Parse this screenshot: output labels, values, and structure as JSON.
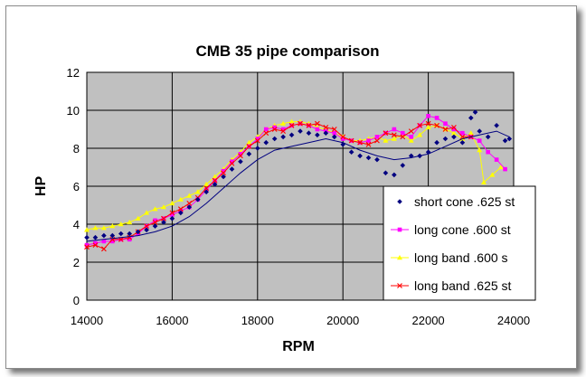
{
  "chart_data": {
    "type": "line",
    "title": "CMB 35 pipe comparison",
    "xlabel": "RPM",
    "ylabel": "HP",
    "xlim": [
      14000,
      24000
    ],
    "ylim": [
      0,
      12
    ],
    "x_ticks": [
      "14000",
      "16000",
      "18000",
      "20000",
      "22000",
      "24000"
    ],
    "y_ticks": [
      "0",
      "2",
      "4",
      "6",
      "8",
      "10",
      "12"
    ],
    "grid": true,
    "plot_background": "#c0c0c0",
    "legend_position": "lower-right",
    "series": [
      {
        "name": "short cone .625 st",
        "color": "#000080",
        "marker": "diamond",
        "line": "trend",
        "points": [
          [
            14000,
            3.3
          ],
          [
            14200,
            3.3
          ],
          [
            14400,
            3.4
          ],
          [
            14600,
            3.4
          ],
          [
            14800,
            3.5
          ],
          [
            15000,
            3.5
          ],
          [
            15200,
            3.6
          ],
          [
            15400,
            3.7
          ],
          [
            15600,
            3.9
          ],
          [
            15800,
            4.1
          ],
          [
            16000,
            4.3
          ],
          [
            16200,
            4.6
          ],
          [
            16400,
            4.9
          ],
          [
            16600,
            5.3
          ],
          [
            16800,
            5.7
          ],
          [
            17000,
            6.1
          ],
          [
            17200,
            6.5
          ],
          [
            17400,
            6.9
          ],
          [
            17600,
            7.3
          ],
          [
            17800,
            7.7
          ],
          [
            18000,
            8.0
          ],
          [
            18200,
            8.3
          ],
          [
            18400,
            8.5
          ],
          [
            18600,
            8.6
          ],
          [
            18800,
            8.7
          ],
          [
            19000,
            8.9
          ],
          [
            19200,
            8.8
          ],
          [
            19400,
            8.7
          ],
          [
            19600,
            8.8
          ],
          [
            19800,
            8.6
          ],
          [
            20000,
            8.2
          ],
          [
            20200,
            7.8
          ],
          [
            20400,
            7.6
          ],
          [
            20600,
            7.5
          ],
          [
            20800,
            7.4
          ],
          [
            21000,
            6.7
          ],
          [
            21200,
            6.6
          ],
          [
            21400,
            7.1
          ],
          [
            21600,
            7.6
          ],
          [
            21800,
            7.6
          ],
          [
            22000,
            7.8
          ],
          [
            22200,
            8.3
          ],
          [
            22400,
            8.5
          ],
          [
            22600,
            8.6
          ],
          [
            22800,
            8.3
          ],
          [
            23000,
            9.6
          ],
          [
            23100,
            9.9
          ],
          [
            23200,
            8.9
          ],
          [
            23400,
            8.6
          ],
          [
            23600,
            9.2
          ],
          [
            23800,
            8.4
          ],
          [
            23900,
            8.5
          ]
        ],
        "trend": [
          [
            14000,
            3.1
          ],
          [
            14400,
            3.2
          ],
          [
            14800,
            3.3
          ],
          [
            15200,
            3.4
          ],
          [
            15600,
            3.6
          ],
          [
            16000,
            3.9
          ],
          [
            16400,
            4.4
          ],
          [
            16800,
            5.1
          ],
          [
            17200,
            5.9
          ],
          [
            17600,
            6.7
          ],
          [
            18000,
            7.4
          ],
          [
            18400,
            7.9
          ],
          [
            18800,
            8.1
          ],
          [
            19200,
            8.3
          ],
          [
            19600,
            8.5
          ],
          [
            20000,
            8.3
          ],
          [
            20400,
            7.9
          ],
          [
            20800,
            7.6
          ],
          [
            21200,
            7.4
          ],
          [
            21600,
            7.5
          ],
          [
            22000,
            7.7
          ],
          [
            22400,
            8.1
          ],
          [
            22800,
            8.5
          ],
          [
            23200,
            8.7
          ],
          [
            23600,
            8.9
          ],
          [
            23900,
            8.6
          ]
        ]
      },
      {
        "name": "long cone .600 st",
        "color": "#ff00ff",
        "marker": "square",
        "line": "solid",
        "points": [
          [
            14000,
            2.9
          ],
          [
            14200,
            3.0
          ],
          [
            14400,
            3.1
          ],
          [
            14600,
            3.1
          ],
          [
            14800,
            3.2
          ],
          [
            15000,
            3.2
          ],
          [
            15200,
            3.5
          ],
          [
            15400,
            3.9
          ],
          [
            15600,
            4.2
          ],
          [
            15800,
            4.3
          ],
          [
            16000,
            4.5
          ],
          [
            16200,
            4.7
          ],
          [
            16400,
            4.9
          ],
          [
            16600,
            5.3
          ],
          [
            16800,
            5.8
          ],
          [
            17000,
            6.3
          ],
          [
            17200,
            6.8
          ],
          [
            17400,
            7.3
          ],
          [
            17600,
            7.7
          ],
          [
            17800,
            8.1
          ],
          [
            18000,
            8.5
          ],
          [
            18200,
            9.0
          ],
          [
            18400,
            9.1
          ],
          [
            18600,
            9.0
          ],
          [
            18800,
            9.2
          ],
          [
            19000,
            9.3
          ],
          [
            19200,
            9.2
          ],
          [
            19400,
            9.0
          ],
          [
            19600,
            8.9
          ],
          [
            19800,
            8.8
          ],
          [
            20000,
            8.5
          ],
          [
            20200,
            8.4
          ],
          [
            20400,
            8.3
          ],
          [
            20600,
            8.4
          ],
          [
            20800,
            8.6
          ],
          [
            21000,
            8.8
          ],
          [
            21200,
            9.0
          ],
          [
            21400,
            8.8
          ],
          [
            21600,
            8.6
          ],
          [
            21800,
            9.2
          ],
          [
            22000,
            9.7
          ],
          [
            22200,
            9.6
          ],
          [
            22400,
            9.3
          ],
          [
            22600,
            9.0
          ],
          [
            22800,
            8.8
          ],
          [
            23000,
            8.6
          ],
          [
            23200,
            8.4
          ],
          [
            23400,
            7.8
          ],
          [
            23600,
            7.4
          ],
          [
            23800,
            6.9
          ]
        ]
      },
      {
        "name": "long band .600 s",
        "color": "#ffff00",
        "marker": "triangle",
        "line": "solid",
        "points": [
          [
            14000,
            3.7
          ],
          [
            14200,
            3.8
          ],
          [
            14400,
            3.8
          ],
          [
            14600,
            3.9
          ],
          [
            14800,
            4.0
          ],
          [
            15000,
            4.1
          ],
          [
            15200,
            4.3
          ],
          [
            15400,
            4.6
          ],
          [
            15600,
            4.8
          ],
          [
            15800,
            4.9
          ],
          [
            16000,
            5.1
          ],
          [
            16200,
            5.3
          ],
          [
            16400,
            5.5
          ],
          [
            16600,
            5.7
          ],
          [
            16800,
            6.1
          ],
          [
            17000,
            6.5
          ],
          [
            17200,
            6.9
          ],
          [
            17400,
            7.4
          ],
          [
            17600,
            7.8
          ],
          [
            17800,
            8.3
          ],
          [
            18000,
            8.6
          ],
          [
            18200,
            9.0
          ],
          [
            18400,
            9.2
          ],
          [
            18600,
            9.3
          ],
          [
            18800,
            9.4
          ],
          [
            19000,
            9.4
          ],
          [
            19200,
            9.3
          ],
          [
            19400,
            9.1
          ],
          [
            19600,
            9.0
          ],
          [
            19800,
            8.8
          ],
          [
            20000,
            8.6
          ],
          [
            20200,
            8.4
          ],
          [
            20400,
            8.4
          ],
          [
            20600,
            8.5
          ],
          [
            20800,
            8.6
          ],
          [
            21000,
            8.4
          ],
          [
            21200,
            8.5
          ],
          [
            21400,
            8.7
          ],
          [
            21600,
            8.4
          ],
          [
            21800,
            8.7
          ],
          [
            22000,
            9.1
          ],
          [
            22200,
            9.2
          ],
          [
            22400,
            9.0
          ],
          [
            22600,
            8.8
          ],
          [
            22800,
            8.5
          ],
          [
            23000,
            8.8
          ],
          [
            23200,
            7.9
          ],
          [
            23300,
            6.2
          ],
          [
            23500,
            6.6
          ],
          [
            23700,
            7.0
          ]
        ]
      },
      {
        "name": "long band .625 st",
        "color": "#ff0000",
        "marker": "cross",
        "line": "solid",
        "points": [
          [
            14000,
            2.8
          ],
          [
            14200,
            2.9
          ],
          [
            14400,
            2.7
          ],
          [
            14600,
            3.2
          ],
          [
            14800,
            3.2
          ],
          [
            15000,
            3.3
          ],
          [
            15200,
            3.6
          ],
          [
            15400,
            3.9
          ],
          [
            15600,
            4.1
          ],
          [
            15800,
            4.3
          ],
          [
            16000,
            4.6
          ],
          [
            16200,
            4.8
          ],
          [
            16400,
            5.1
          ],
          [
            16600,
            5.4
          ],
          [
            16800,
            5.9
          ],
          [
            17000,
            6.3
          ],
          [
            17200,
            6.7
          ],
          [
            17400,
            7.2
          ],
          [
            17600,
            7.6
          ],
          [
            17800,
            8.1
          ],
          [
            18000,
            8.4
          ],
          [
            18200,
            8.8
          ],
          [
            18400,
            9.0
          ],
          [
            18600,
            8.9
          ],
          [
            18800,
            9.2
          ],
          [
            19000,
            9.3
          ],
          [
            19200,
            9.2
          ],
          [
            19400,
            9.3
          ],
          [
            19600,
            9.1
          ],
          [
            19800,
            9.0
          ],
          [
            20000,
            8.6
          ],
          [
            20200,
            8.4
          ],
          [
            20400,
            8.3
          ],
          [
            20600,
            8.2
          ],
          [
            20800,
            8.4
          ],
          [
            21000,
            8.8
          ],
          [
            21200,
            8.7
          ],
          [
            21400,
            8.6
          ],
          [
            21600,
            8.9
          ],
          [
            21800,
            9.2
          ],
          [
            22000,
            9.3
          ],
          [
            22200,
            9.2
          ],
          [
            22400,
            9.0
          ],
          [
            22600,
            9.1
          ],
          [
            22800,
            8.6
          ],
          [
            23000,
            8.6
          ]
        ]
      }
    ]
  }
}
